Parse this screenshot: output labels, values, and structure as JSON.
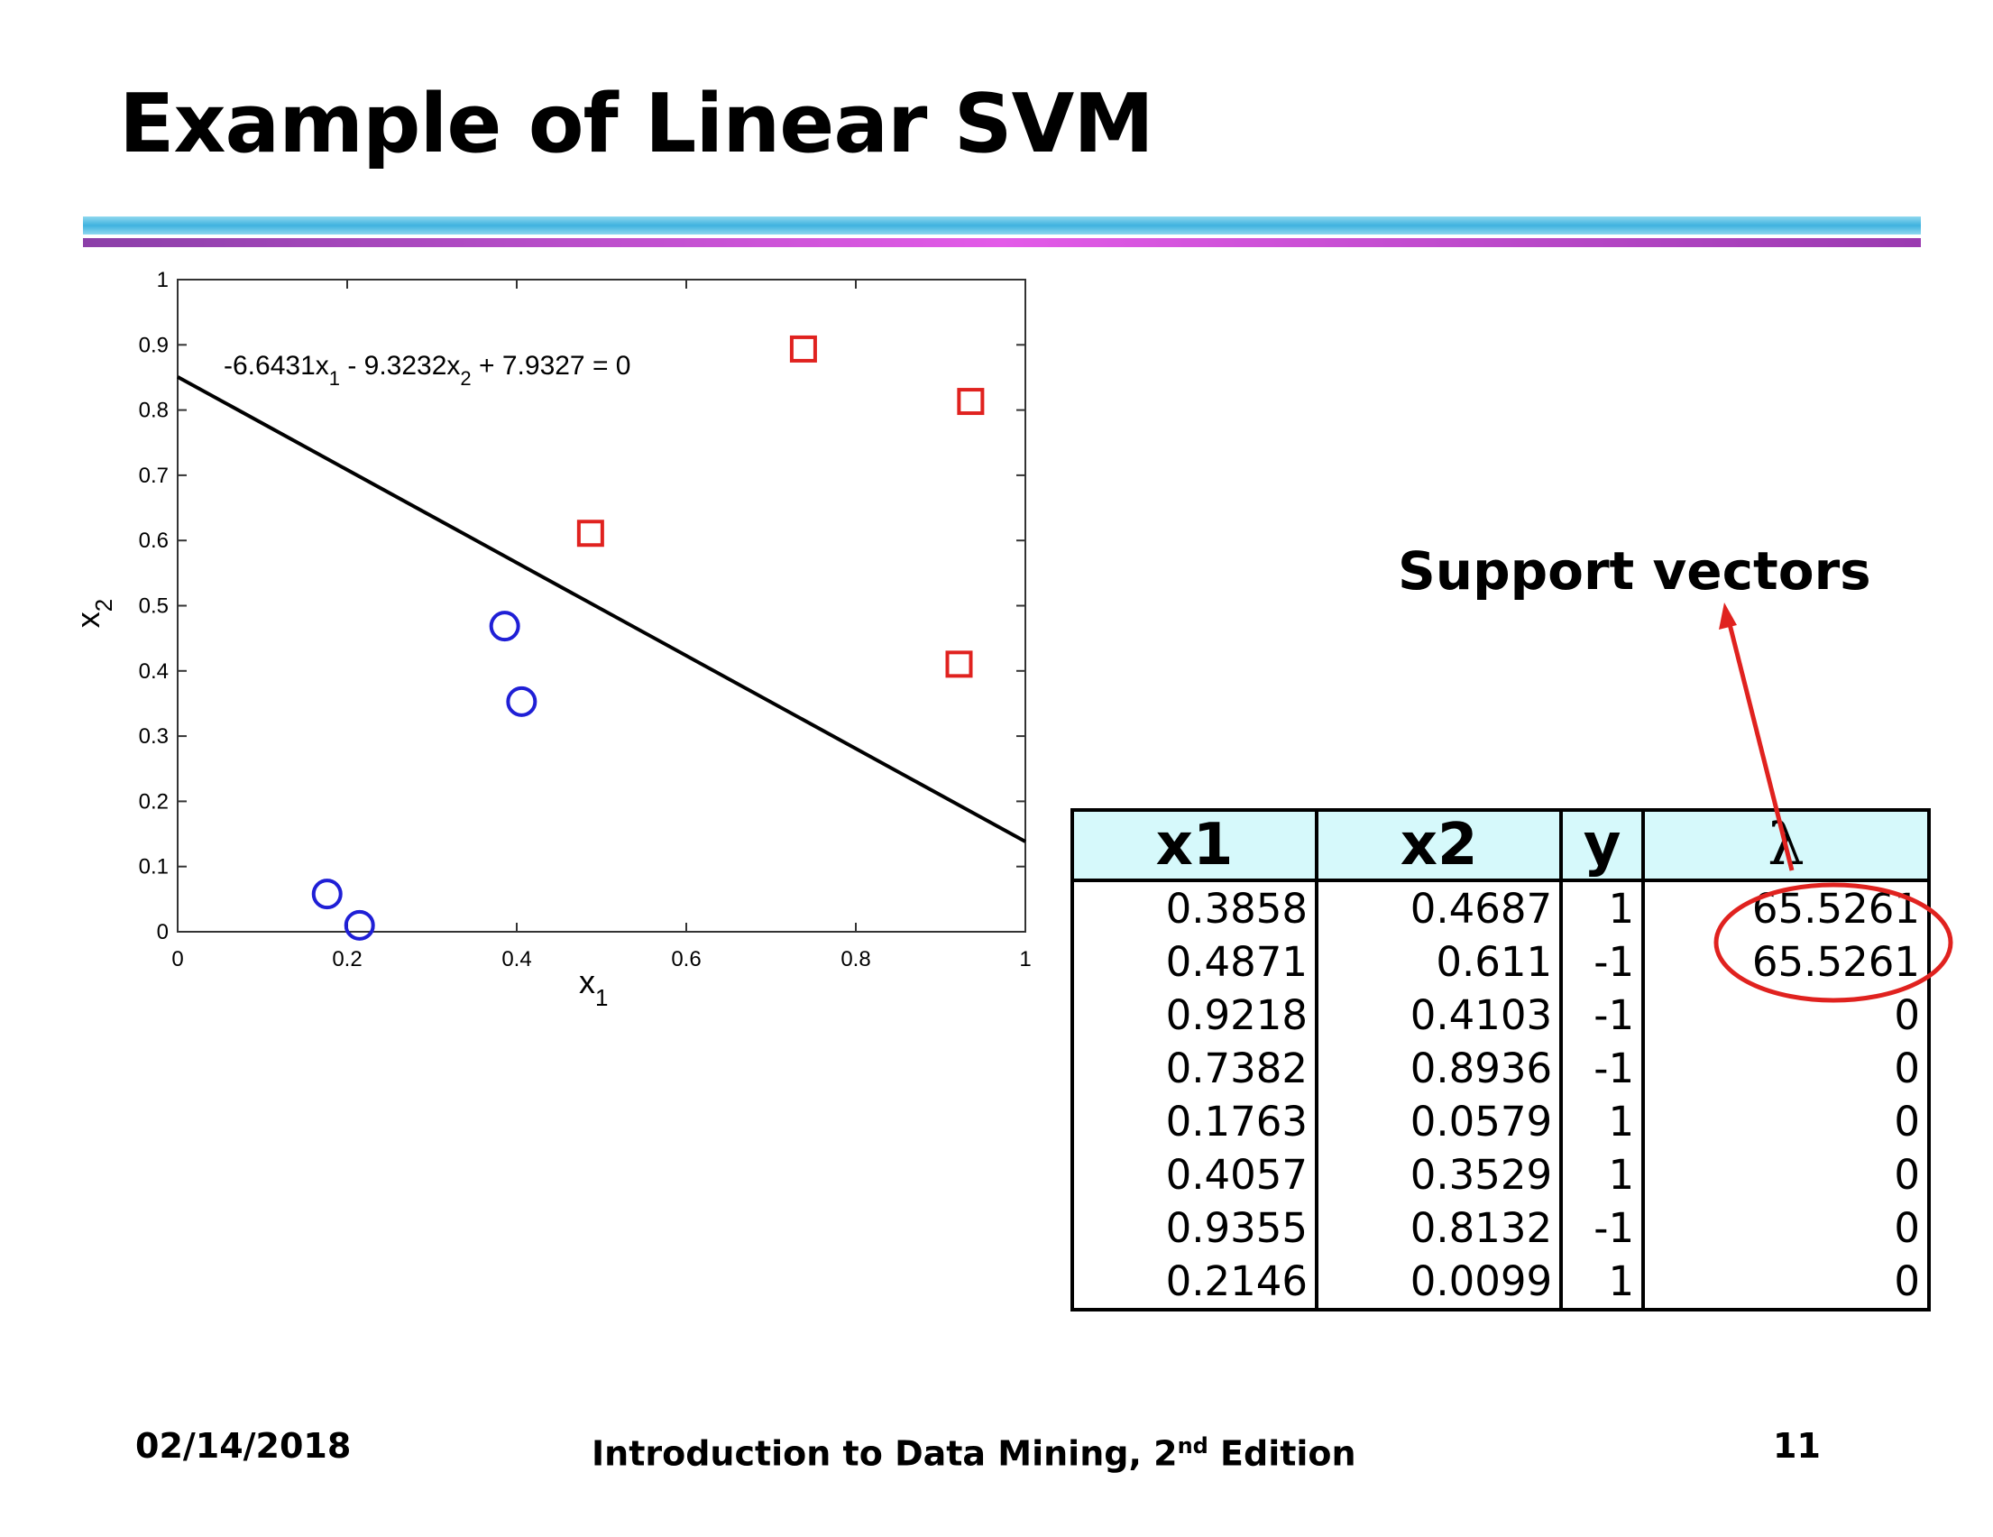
{
  "slide": {
    "title": "Example of Linear SVM",
    "support_vectors_label": "Support vectors"
  },
  "chart_data": {
    "type": "scatter",
    "xlim": [
      0,
      1
    ],
    "ylim": [
      0,
      1
    ],
    "x_ticks": [
      "0",
      "0.2",
      "0.4",
      "0.6",
      "0.8",
      "1"
    ],
    "y_ticks": [
      "0",
      "0.1",
      "0.2",
      "0.3",
      "0.4",
      "0.5",
      "0.6",
      "0.7",
      "0.8",
      "0.9",
      "1"
    ],
    "xlabel": "x",
    "xlabel_sub": "1",
    "ylabel": "x",
    "ylabel_sub": "2",
    "equation": {
      "part1": "-6.6431x",
      "sub1": "1",
      "part2": " - 9.3232x",
      "sub2": "2",
      "part3": " + 7.9327 = 0"
    },
    "boundary": {
      "w1": -6.6431,
      "w2": -9.3232,
      "b": 7.9327
    },
    "series": [
      {
        "marker": "square",
        "color": "#e0221f",
        "points": [
          [
            0.4871,
            0.611
          ],
          [
            0.9218,
            0.4103
          ],
          [
            0.7382,
            0.8936
          ],
          [
            0.9355,
            0.8132
          ]
        ]
      },
      {
        "marker": "circle",
        "color": "#1f1fd6",
        "points": [
          [
            0.3858,
            0.4687
          ],
          [
            0.1763,
            0.0579
          ],
          [
            0.4057,
            0.3529
          ],
          [
            0.2146,
            0.0099
          ]
        ]
      }
    ]
  },
  "table": {
    "headers": [
      "x1",
      "x2",
      "y",
      "λ"
    ],
    "rows": [
      [
        "0.3858",
        "0.4687",
        "1",
        "65.5261"
      ],
      [
        "0.4871",
        "0.611",
        "-1",
        "65.5261"
      ],
      [
        "0.9218",
        "0.4103",
        "-1",
        "0"
      ],
      [
        "0.7382",
        "0.8936",
        "-1",
        "0"
      ],
      [
        "0.1763",
        "0.0579",
        "1",
        "0"
      ],
      [
        "0.4057",
        "0.3529",
        "1",
        "0"
      ],
      [
        "0.9355",
        "0.8132",
        "-1",
        "0"
      ],
      [
        "0.2146",
        "0.0099",
        "1",
        "0"
      ]
    ]
  },
  "footer": {
    "date": "02/14/2018",
    "course_main": "Introduction to Data Mining, 2",
    "course_sup": "nd",
    "course_rest": " Edition",
    "page": "11"
  }
}
